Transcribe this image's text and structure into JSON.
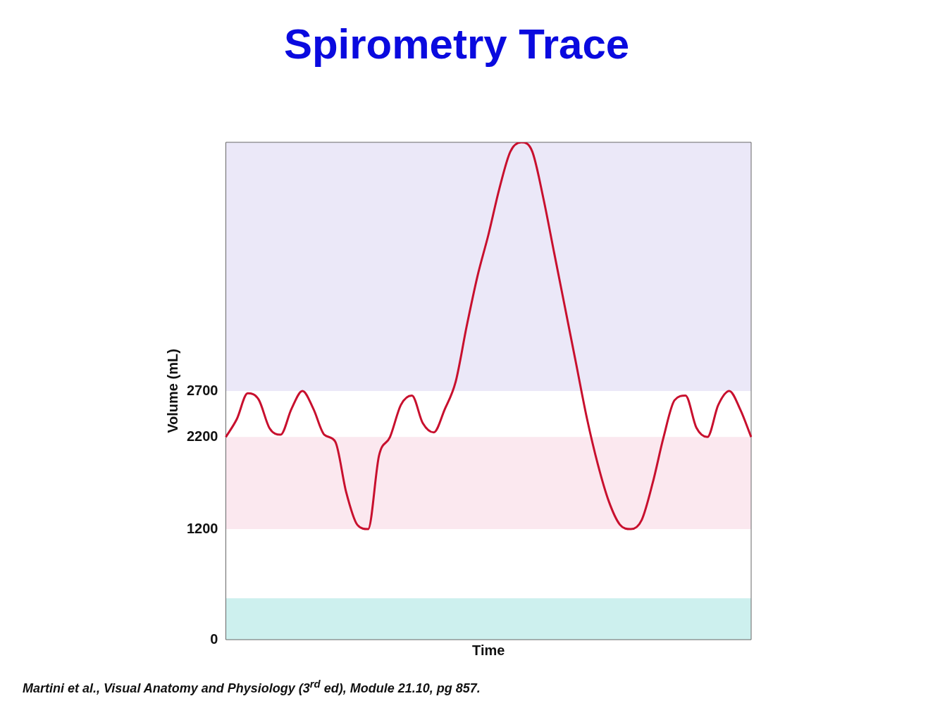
{
  "chart_data": {
    "type": "line",
    "title": "Spirometry Trace",
    "xlabel": "Time",
    "ylabel": "Volume (mL)",
    "categories": [
      null,
      null,
      null,
      null,
      null,
      null,
      null,
      null,
      null,
      null,
      null,
      null,
      null,
      null,
      null,
      null,
      null,
      null,
      null,
      null,
      null,
      null,
      null,
      null,
      null,
      null,
      null,
      null,
      null,
      null,
      null,
      null,
      null,
      null,
      null,
      null,
      null,
      null,
      null,
      null,
      null,
      null,
      null,
      null,
      null,
      null,
      null,
      null,
      null
    ],
    "series": [
      {
        "color": "#c8102e",
        "values": [
          2200,
          2394,
          2675,
          2607,
          2294,
          2225,
          2506,
          2700,
          2506,
          2225,
          2150,
          1600,
          1250,
          1200,
          2000,
          2200,
          2550,
          2650,
          2350,
          2250,
          2500,
          2800,
          3400,
          3950,
          4400,
          4900,
          5300,
          5400,
          5300,
          4800,
          4200,
          3600,
          3000,
          2400,
          1900,
          1500,
          1250,
          1200,
          1300,
          1700,
          2200,
          2600,
          2650,
          2300,
          2200,
          2550,
          2700,
          2500,
          2200
        ]
      }
    ],
    "ylim": [
      0,
      5400
    ],
    "yticks": [
      0,
      1200,
      2200,
      2700
    ],
    "bands": [
      {
        "axis": "y",
        "from": 2700,
        "to": 5400,
        "color": "#ebe8f8"
      },
      {
        "axis": "y",
        "from": 1200,
        "to": 2200,
        "color": "#fbe8ef"
      },
      {
        "axis": "y",
        "from": 0,
        "to": 450,
        "color": "#cdf0ee"
      }
    ],
    "grid": false,
    "legend": false,
    "marker": "none",
    "line_style": "solid",
    "tick_labels": "y",
    "annotations": [
      "Martini et al., Visual Anatomy and Physiology (3$^{rd}$ ed), Module 21.10, pg 857."
    ]
  }
}
